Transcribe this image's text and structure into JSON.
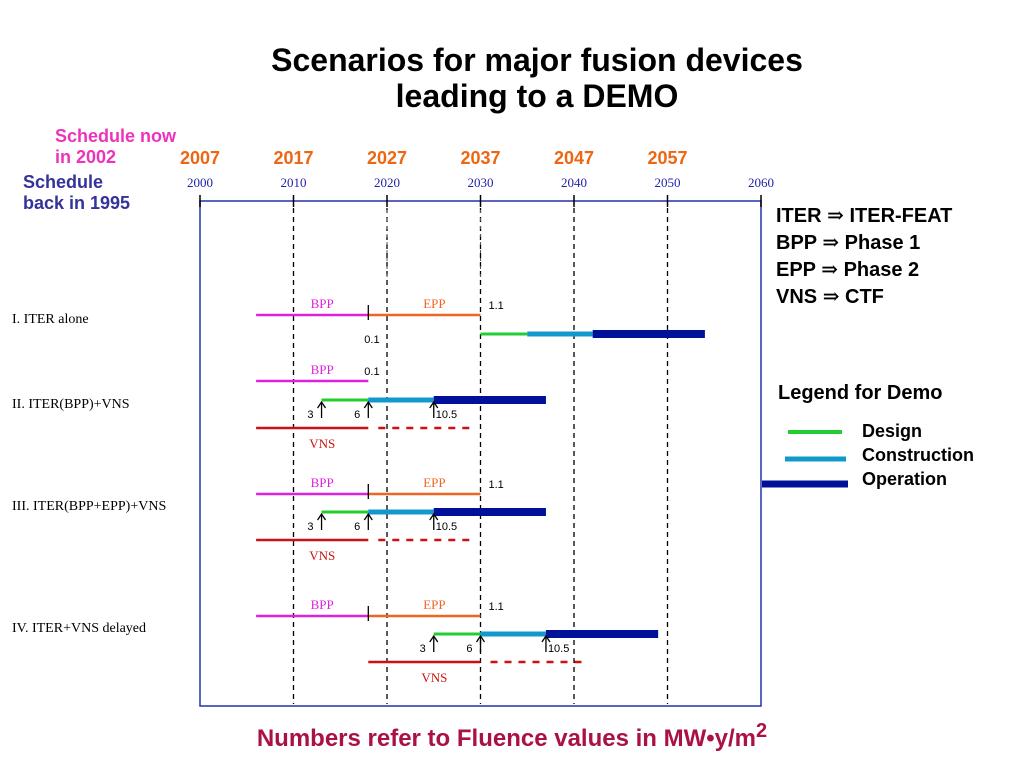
{
  "title_line1": "Scenarios for major fusion devices",
  "title_line2": "leading to a DEMO",
  "schedule_2002": {
    "line1": "Schedule now",
    "line2": "in 2002"
  },
  "schedule_1995": {
    "line1": "Schedule",
    "line2": "back in 1995"
  },
  "years_2002": [
    "2007",
    "2017",
    "2027",
    "2037",
    "2047",
    "2057"
  ],
  "years_1995": [
    "2000",
    "2010",
    "2020",
    "2030",
    "2040",
    "2050",
    "2060"
  ],
  "renames": [
    {
      "from": "ITER",
      "arrow": "⇒",
      "to": "ITER-FEAT"
    },
    {
      "from": "BPP",
      "arrow": "⇒",
      "to": "Phase 1"
    },
    {
      "from": "EPP",
      "arrow": "⇒",
      "to": "Phase 2"
    },
    {
      "from": "VNS",
      "arrow": "⇒",
      "to": "CTF"
    }
  ],
  "legend": {
    "title": "Legend for Demo",
    "items": [
      {
        "label": "Design",
        "color": "#22cc33"
      },
      {
        "label": "Construction",
        "color": "#1199cc"
      },
      {
        "label": "Operation",
        "color": "#001199"
      }
    ]
  },
  "colors": {
    "bpp": "#dd22dd",
    "epp": "#ee6622",
    "vns": "#cc1111",
    "year_2002": "#ee6611",
    "year_1995": "#2222aa",
    "frame": "#2233aa"
  },
  "scenarios": [
    {
      "label": "I.  ITER alone",
      "bpp": {
        "label": "BPP",
        "start_year": 2006,
        "end_year": 2018
      },
      "epp": {
        "label": "EPP",
        "start_year": 2018,
        "end_year": 2030
      },
      "fluence_bpp_end": "0.1",
      "fluence_epp_end": "1.1",
      "demo": {
        "design": [
          2030,
          2035
        ],
        "construction": [
          2035,
          2042
        ],
        "operation": [
          2042,
          2054
        ]
      }
    },
    {
      "label": "II.  ITER(BPP)+VNS",
      "bpp": {
        "label": "BPP",
        "start_year": 2006,
        "end_year": 2018
      },
      "fluence_bpp_end": "0.1",
      "vns": {
        "label": "VNS",
        "start_year": 2006,
        "end_year": 2018,
        "extension_end_year": 2029
      },
      "fluence_marks": [
        {
          "label": "3",
          "year": 2013
        },
        {
          "label": "6",
          "year": 2018
        },
        {
          "label": "10.5",
          "year": 2025
        }
      ],
      "demo": {
        "design": [
          2013,
          2018
        ],
        "construction": [
          2018,
          2025
        ],
        "operation": [
          2025,
          2037
        ]
      }
    },
    {
      "label": "III.  ITER(BPP+EPP)+VNS",
      "bpp": {
        "label": "BPP",
        "start_year": 2006,
        "end_year": 2018
      },
      "epp": {
        "label": "EPP",
        "start_year": 2018,
        "end_year": 2030
      },
      "fluence_epp_end": "1.1",
      "vns": {
        "label": "VNS",
        "start_year": 2006,
        "end_year": 2018,
        "extension_end_year": 2029
      },
      "fluence_marks": [
        {
          "label": "3",
          "year": 2013
        },
        {
          "label": "6",
          "year": 2018
        },
        {
          "label": "10.5",
          "year": 2025
        }
      ],
      "demo": {
        "design": [
          2013,
          2018
        ],
        "construction": [
          2018,
          2025
        ],
        "operation": [
          2025,
          2037
        ]
      }
    },
    {
      "label": "IV.  ITER+VNS delayed",
      "bpp": {
        "label": "BPP",
        "start_year": 2006,
        "end_year": 2018
      },
      "epp": {
        "label": "EPP",
        "start_year": 2018,
        "end_year": 2030
      },
      "fluence_epp_end": "1.1",
      "vns": {
        "label": "VNS",
        "start_year": 2018,
        "end_year": 2030,
        "extension_end_year": 2041
      },
      "fluence_marks": [
        {
          "label": "3",
          "year": 2025
        },
        {
          "label": "6",
          "year": 2030
        },
        {
          "label": "10.5",
          "year": 2037
        }
      ],
      "demo": {
        "design": [
          2025,
          2030
        ],
        "construction": [
          2030,
          2037
        ],
        "operation": [
          2037,
          2049
        ]
      }
    }
  ],
  "footer_prefix": "Numbers refer to Fluence values in MW•y/m",
  "footer_sup": "2"
}
